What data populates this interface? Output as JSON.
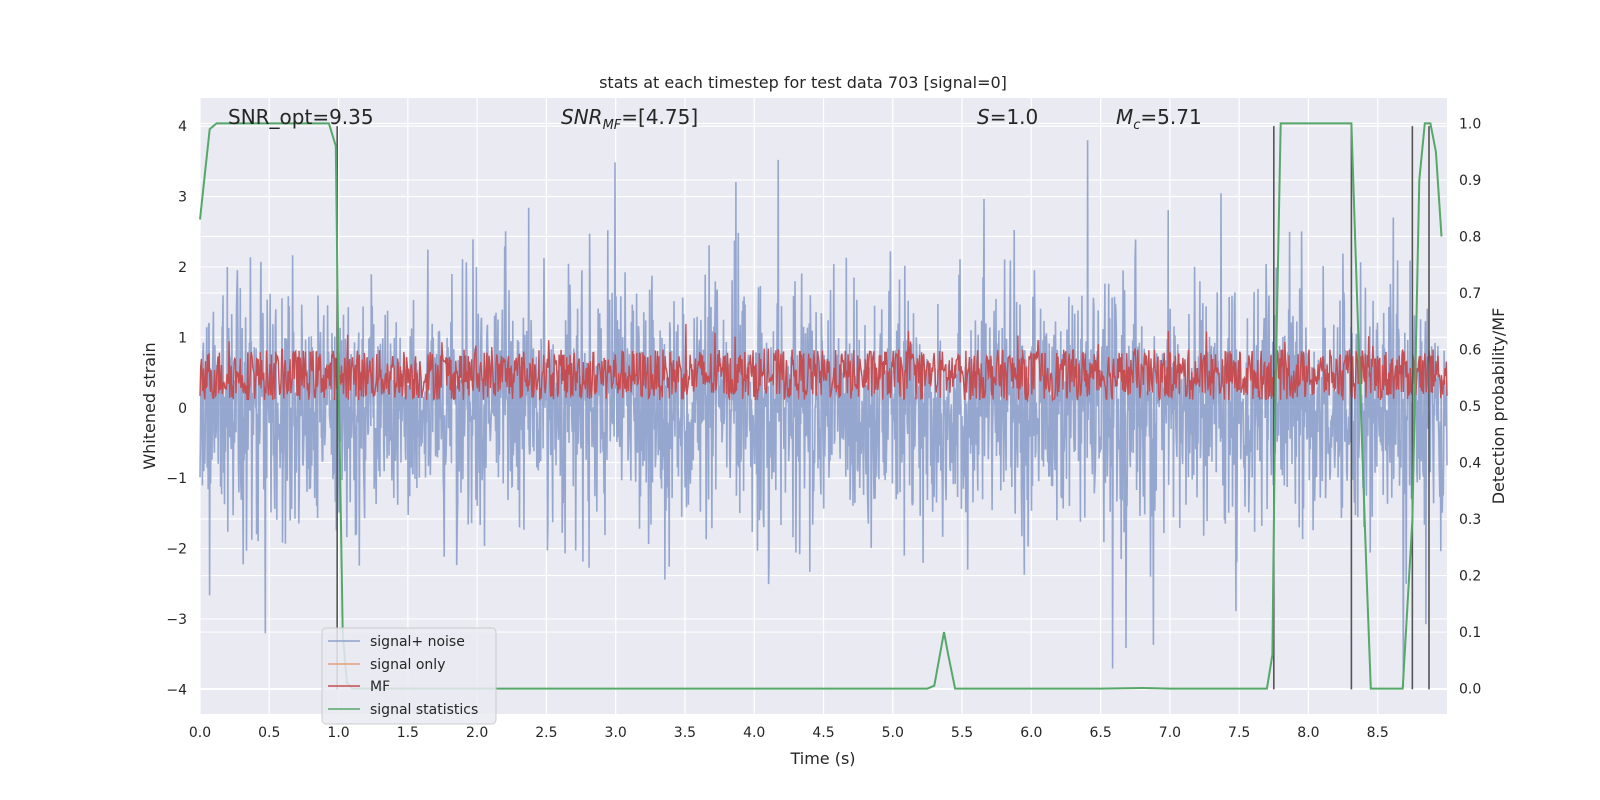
{
  "chart_data": {
    "type": "line",
    "title": "stats at each timestep for test data 703 [signal=0]",
    "xlabel": "Time (s)",
    "ylabel_left": "Whitened strain",
    "ylabel_right": "Detection probability/MF",
    "xlim": [
      0.0,
      9.0
    ],
    "ylim_left": [
      -4.35,
      4.4
    ],
    "ylim_right": [
      -0.045,
      1.045
    ],
    "x_ticks": [
      0.0,
      0.5,
      1.0,
      1.5,
      2.0,
      2.5,
      3.0,
      3.5,
      4.0,
      4.5,
      5.0,
      5.5,
      6.0,
      6.5,
      7.0,
      7.5,
      8.0,
      8.5
    ],
    "x_tick_labels": [
      "0.0",
      "0.5",
      "1.0",
      "1.5",
      "2.0",
      "2.5",
      "3.0",
      "3.5",
      "4.0",
      "4.5",
      "5.0",
      "5.5",
      "6.0",
      "6.5",
      "7.0",
      "7.5",
      "8.0",
      "8.5"
    ],
    "y_left_ticks": [
      -4,
      -3,
      -2,
      -1,
      0,
      1,
      2,
      3,
      4
    ],
    "y_left_tick_labels": [
      "−4",
      "−3",
      "−2",
      "−1",
      "0",
      "1",
      "2",
      "3",
      "4"
    ],
    "y_right_ticks": [
      0.0,
      0.1,
      0.2,
      0.3,
      0.4,
      0.5,
      0.6,
      0.7,
      0.8,
      0.9,
      1.0
    ],
    "y_right_tick_labels": [
      "0.0",
      "0.1",
      "0.2",
      "0.3",
      "0.4",
      "0.5",
      "0.6",
      "0.7",
      "0.8",
      "0.9",
      "1.0"
    ],
    "grid": true,
    "legend_position": "lower-left",
    "annotations": {
      "snr_opt": "SNR_opt=9.35",
      "snr_mf": "SNR_MF=[4.75]",
      "s": "S=1.0",
      "mc": "M_c=5.71"
    },
    "series": [
      {
        "name": "signal+ noise",
        "color": "#8da0cb",
        "axis": "left",
        "kind": "noise",
        "typical_range": [
          -2.0,
          2.0
        ],
        "peak_range": [
          -4.0,
          3.8
        ]
      },
      {
        "name": "signal only",
        "color": "#e8a07c",
        "axis": "left",
        "kind": "line",
        "x": [],
        "y": []
      },
      {
        "name": "MF",
        "color": "#c44e52",
        "axis": "right",
        "kind": "noise",
        "typical_range": [
          0.51,
          0.6
        ],
        "peak_range": [
          0.5,
          0.66
        ]
      },
      {
        "name": "signal statistics",
        "color": "#55a868",
        "axis": "right",
        "kind": "line",
        "x": [
          0.0,
          0.07,
          0.12,
          0.3,
          0.6,
          0.93,
          0.98,
          1.0,
          1.03,
          1.06,
          1.1,
          1.2,
          2.0,
          3.0,
          4.0,
          5.0,
          5.25,
          5.3,
          5.37,
          5.4,
          5.45,
          5.5,
          6.0,
          6.5,
          6.8,
          7.0,
          7.5,
          7.7,
          7.74,
          7.76,
          7.8,
          7.9,
          8.0,
          8.31,
          8.35,
          8.42,
          8.45,
          8.5,
          8.68,
          8.75,
          8.8,
          8.84,
          8.88,
          8.92,
          8.96
        ],
        "y": [
          0.83,
          0.99,
          1.0,
          1.0,
          1.0,
          1.0,
          0.96,
          0.55,
          0.1,
          0.01,
          0.0,
          0.0,
          0.0,
          0.0,
          0.0,
          0.0,
          0.0,
          0.005,
          0.1,
          0.06,
          0.0,
          0.0,
          0.0,
          0.0,
          0.001,
          0.0,
          0.0,
          0.0,
          0.06,
          0.5,
          1.0,
          1.0,
          1.0,
          1.0,
          0.7,
          0.2,
          0.0,
          0.0,
          0.0,
          0.3,
          0.9,
          1.0,
          1.0,
          0.95,
          0.8
        ]
      }
    ],
    "vertical_markers": {
      "color": "#555555",
      "lines": [
        {
          "x": 0.99,
          "y0": -4.0,
          "y1": 4.0
        },
        {
          "x": 7.75,
          "y0": -4.0,
          "y1": 4.0
        },
        {
          "x": 8.31,
          "y0": -4.0,
          "y1": 4.0
        },
        {
          "x": 8.75,
          "y0": -4.0,
          "y1": 4.0
        },
        {
          "x": 8.87,
          "y0": -4.0,
          "y1": 4.0
        }
      ]
    }
  }
}
